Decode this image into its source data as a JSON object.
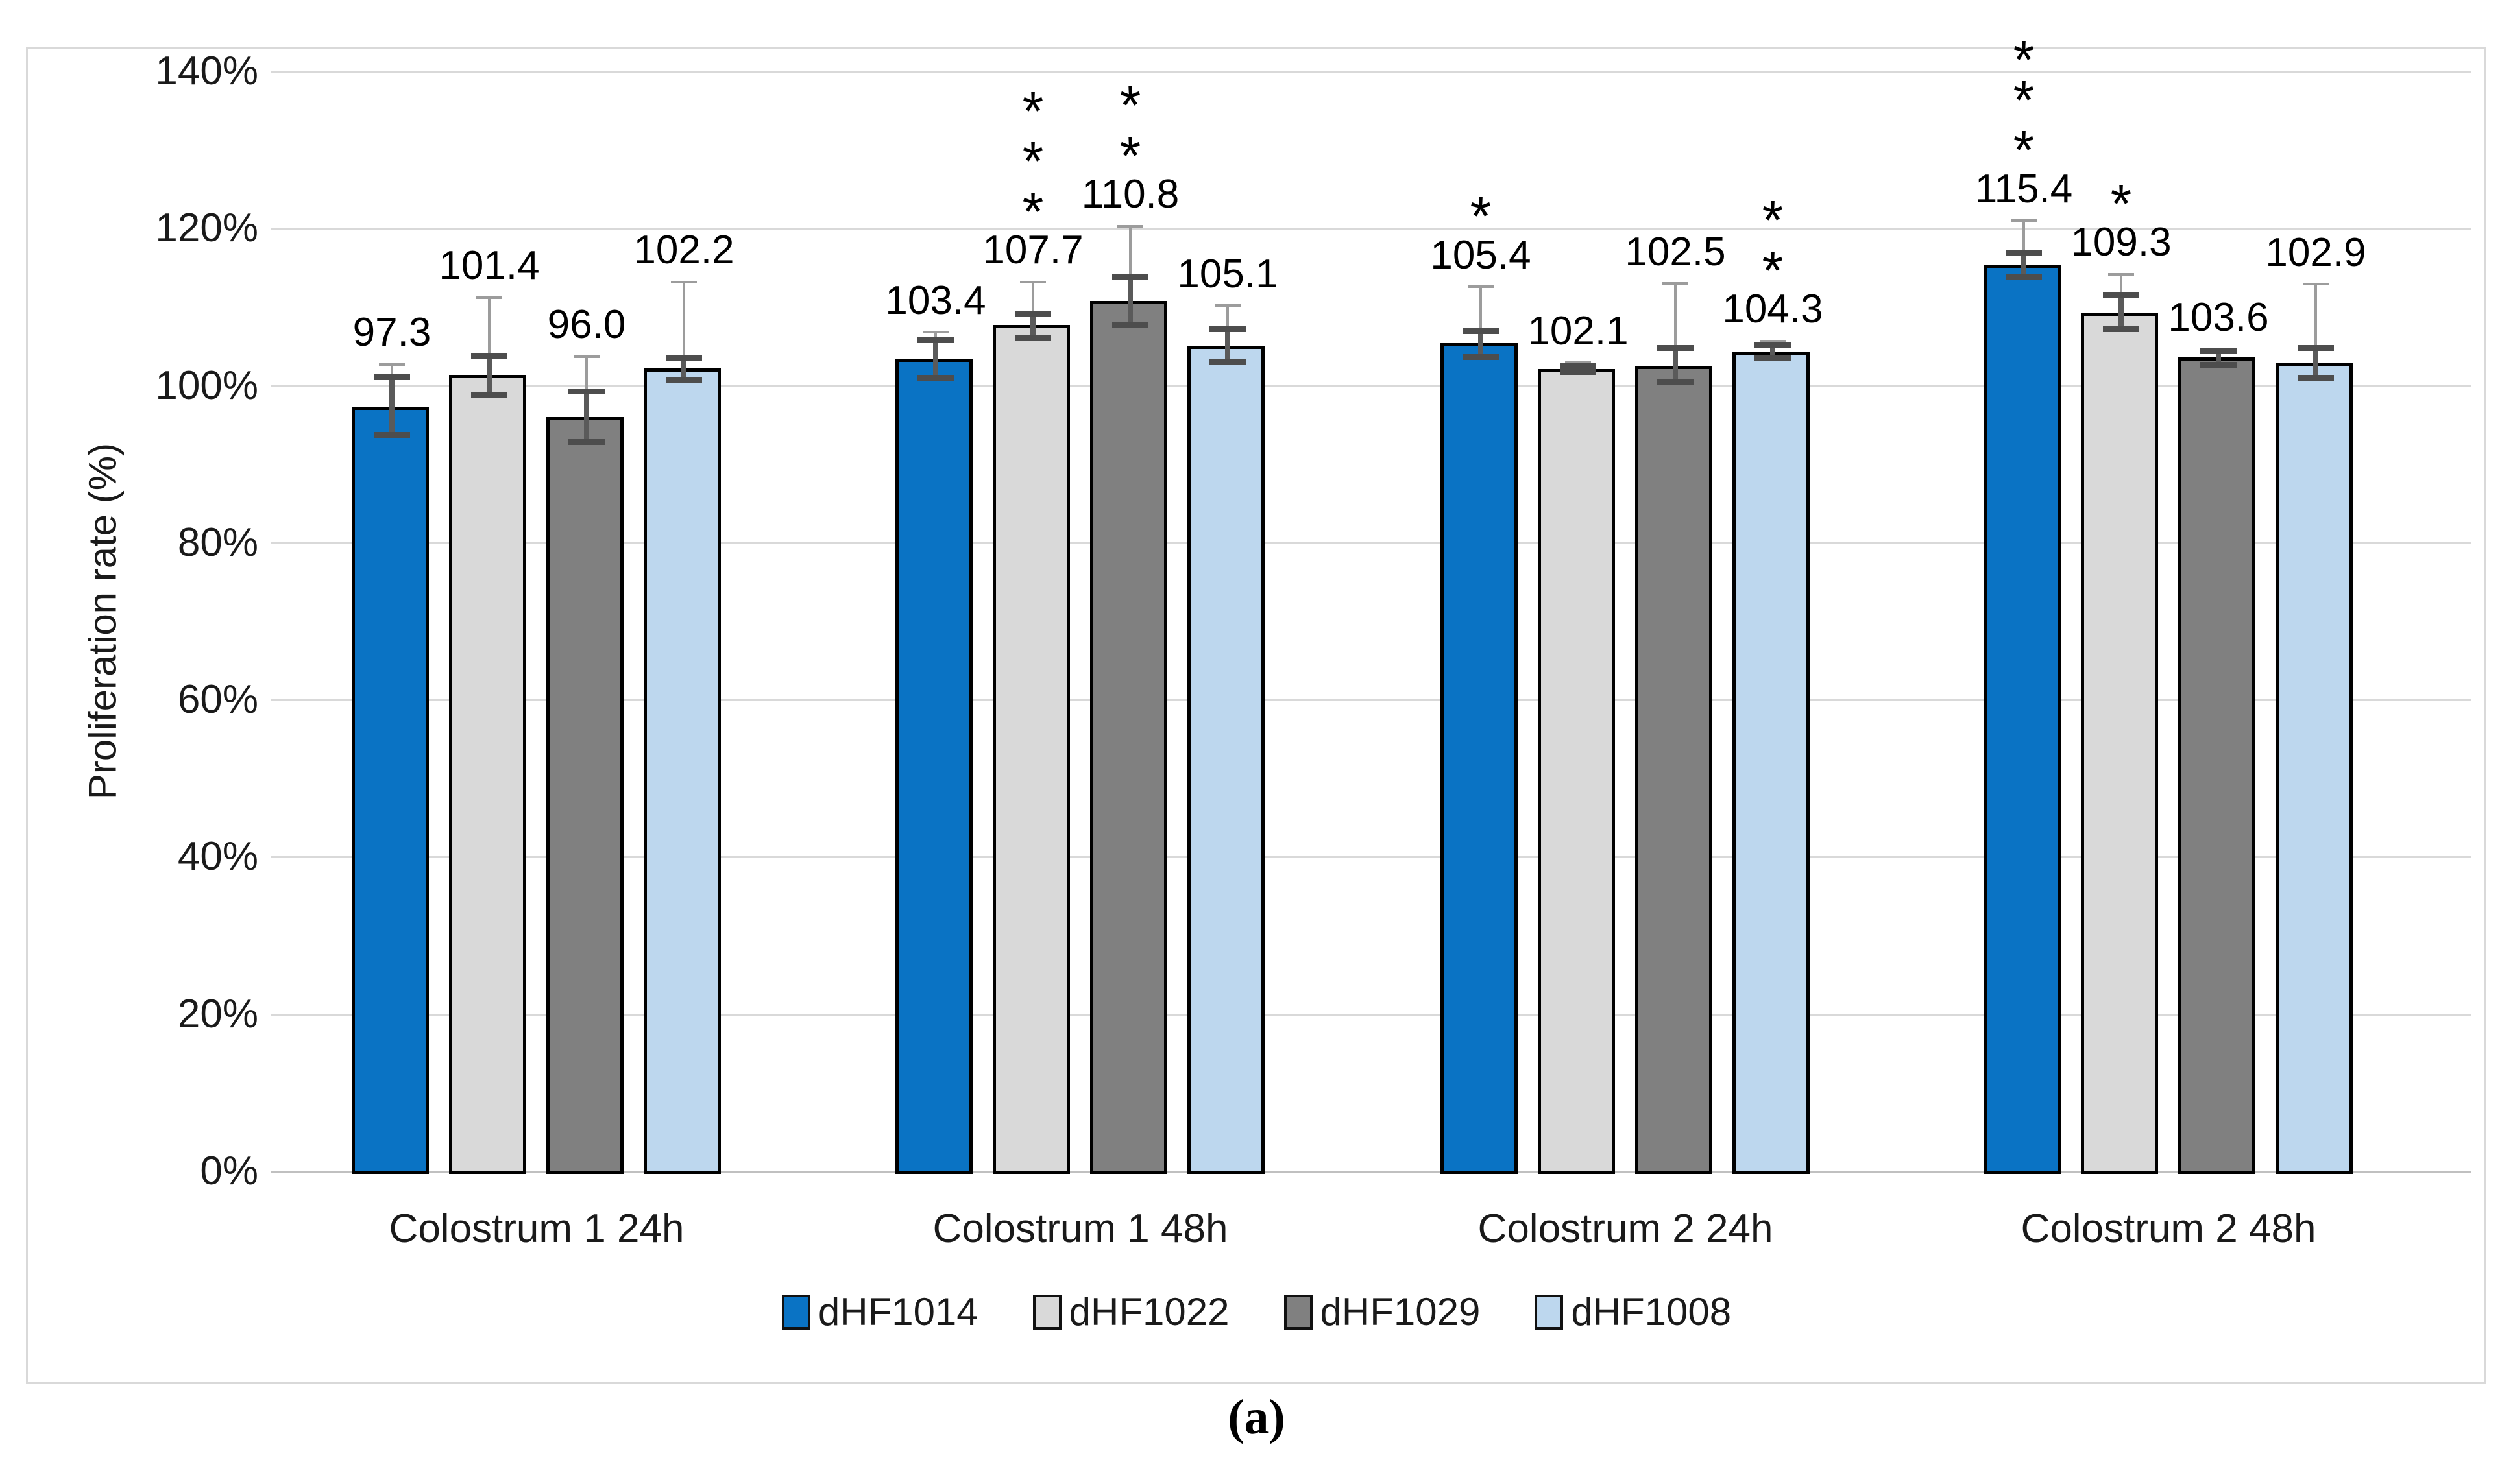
{
  "caption": "(a)",
  "chart_data": {
    "type": "bar",
    "title": "",
    "ylabel": "Proliferation rate (%)",
    "ylim": [
      0,
      140
    ],
    "ytick_step": 20,
    "ytick_suffix": "%",
    "grid": true,
    "legend_position": "bottom",
    "categories": [
      "Colostrum 1 24h",
      "Colostrum 1 48h",
      "Colostrum 2 24h",
      "Colostrum 2 48h"
    ],
    "series": [
      {
        "name": "dHF1014",
        "color": "#0a73c4",
        "bars": [
          {
            "value": 97.3,
            "label": "97.3",
            "cap_top": 101.1,
            "cap_bot": 93.8,
            "whisker_top": 102.7,
            "stars": 0
          },
          {
            "value": 103.4,
            "label": "103.4",
            "cap_top": 105.8,
            "cap_bot": 101.0,
            "whisker_top": 106.8,
            "stars": 0
          },
          {
            "value": 105.4,
            "label": "105.4",
            "cap_top": 107.0,
            "cap_bot": 103.7,
            "whisker_top": 112.6,
            "stars": 1
          },
          {
            "value": 115.4,
            "label": "115.4",
            "cap_top": 116.9,
            "cap_bot": 113.9,
            "whisker_top": 121.0,
            "stars": 3
          }
        ]
      },
      {
        "name": "dHF1022",
        "color": "#d9d9d9",
        "bars": [
          {
            "value": 101.4,
            "label": "101.4",
            "cap_top": 103.8,
            "cap_bot": 98.9,
            "whisker_top": 111.2,
            "stars": 0
          },
          {
            "value": 107.7,
            "label": "107.7",
            "cap_top": 109.2,
            "cap_bot": 106.1,
            "whisker_top": 113.2,
            "stars": 3
          },
          {
            "value": 102.1,
            "label": "102.1",
            "cap_top": 102.5,
            "cap_bot": 101.8,
            "whisker_top": 102.9,
            "stars": 0
          },
          {
            "value": 109.3,
            "label": "109.3",
            "cap_top": 111.6,
            "cap_bot": 107.2,
            "whisker_top": 114.2,
            "stars": 1
          }
        ]
      },
      {
        "name": "dHF1029",
        "color": "#808080",
        "bars": [
          {
            "value": 96.0,
            "label": "96.0",
            "cap_top": 99.3,
            "cap_bot": 92.9,
            "whisker_top": 103.7,
            "stars": 0
          },
          {
            "value": 110.8,
            "label": "110.8",
            "cap_top": 113.8,
            "cap_bot": 107.8,
            "whisker_top": 120.3,
            "stars": 2
          },
          {
            "value": 102.5,
            "label": "102.5",
            "cap_top": 104.8,
            "cap_bot": 100.5,
            "whisker_top": 113.0,
            "stars": 0
          },
          {
            "value": 103.6,
            "label": "103.6",
            "cap_top": 104.4,
            "cap_bot": 102.7,
            "whisker_top": 104.6,
            "stars": 0
          }
        ]
      },
      {
        "name": "dHF1008",
        "color": "#bdd7ee",
        "bars": [
          {
            "value": 102.2,
            "label": "102.2",
            "cap_top": 103.6,
            "cap_bot": 100.8,
            "whisker_top": 113.2,
            "stars": 0
          },
          {
            "value": 105.1,
            "label": "105.1",
            "cap_top": 107.2,
            "cap_bot": 103.0,
            "whisker_top": 110.2,
            "stars": 0
          },
          {
            "value": 104.3,
            "label": "104.3",
            "cap_top": 105.2,
            "cap_bot": 103.5,
            "whisker_top": 105.7,
            "stars": 2
          },
          {
            "value": 102.9,
            "label": "102.9",
            "cap_top": 104.8,
            "cap_bot": 101.0,
            "whisker_top": 112.9,
            "stars": 0
          }
        ]
      }
    ]
  }
}
